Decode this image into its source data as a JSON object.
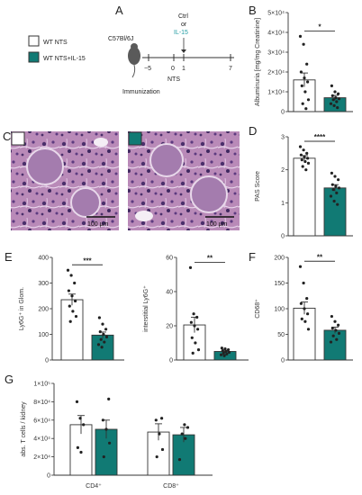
{
  "colors": {
    "teal": "#117a74",
    "white_bar": "#ffffff",
    "axis": "#333333",
    "dot": "#222222",
    "il15_text": "#1c9aa0"
  },
  "panels": {
    "A": "A",
    "B": "B",
    "C": "C",
    "D": "D",
    "E": "E",
    "F": "F",
    "G": "G"
  },
  "legend": {
    "entries": [
      "WT NTS",
      "WT NTS+IL-15"
    ]
  },
  "schema": {
    "mouse_strain": "C57Bl/6J",
    "ctrl": "Ctrl",
    "or": "or",
    "il15": "IL-15",
    "timeline_ticks": [
      "−5",
      "0",
      "1",
      "7"
    ],
    "nts": "NTS",
    "immunization": "Immunization"
  },
  "histology": {
    "scale_left": "100 µm",
    "scale_right": "100 µm"
  },
  "chart_data": [
    {
      "id": "B",
      "type": "bar",
      "ylabel": "Albuminuria [mg/mg Creatinine]",
      "ylim": [
        0,
        50000
      ],
      "yticks": [
        "0",
        "1×10⁴",
        "2×10⁴",
        "3×10⁴",
        "4×10⁴",
        "5×10⁴"
      ],
      "significance": "*",
      "series": [
        {
          "name": "WT NTS",
          "mean": 16000,
          "sem": 3500,
          "points": [
            38000,
            34000,
            24000,
            20000,
            17000,
            15000,
            13000,
            10000,
            6000,
            4000,
            1500
          ]
        },
        {
          "name": "WT NTS+IL-15",
          "mean": 7000,
          "sem": 1200,
          "points": [
            13000,
            10000,
            9000,
            8000,
            7000,
            6500,
            6000,
            5000,
            4000,
            3000,
            2000
          ]
        }
      ]
    },
    {
      "id": "D",
      "type": "bar",
      "ylabel": "PAS Score",
      "ylim": [
        0,
        3
      ],
      "yticks": [
        "0",
        "1",
        "2",
        "3"
      ],
      "significance": "****",
      "series": [
        {
          "name": "WT NTS",
          "mean": 2.35,
          "sem": 0.08,
          "points": [
            2.7,
            2.6,
            2.5,
            2.45,
            2.4,
            2.35,
            2.3,
            2.25,
            2.2,
            2.1,
            2.0
          ]
        },
        {
          "name": "WT NTS+IL-15",
          "mean": 1.45,
          "sem": 0.1,
          "points": [
            1.9,
            1.8,
            1.7,
            1.55,
            1.5,
            1.45,
            1.4,
            1.3,
            1.2,
            1.05,
            0.95
          ]
        }
      ]
    },
    {
      "id": "E1",
      "type": "bar",
      "ylabel": "Ly6G⁺ in Glom.",
      "ylim": [
        0,
        400
      ],
      "yticks": [
        "0",
        "100",
        "200",
        "300",
        "400"
      ],
      "significance": "***",
      "series": [
        {
          "name": "WT NTS",
          "mean": 235,
          "sem": 22,
          "points": [
            350,
            330,
            300,
            270,
            250,
            230,
            210,
            190,
            170,
            150
          ]
        },
        {
          "name": "WT NTS+IL-15",
          "mean": 97,
          "sem": 12,
          "points": [
            165,
            140,
            120,
            110,
            100,
            90,
            80,
            70,
            60,
            50
          ]
        }
      ]
    },
    {
      "id": "E2",
      "type": "bar",
      "ylabel": "interstitial Ly6G⁺",
      "ylim": [
        0,
        60
      ],
      "yticks": [
        "0",
        "20",
        "40",
        "60"
      ],
      "significance": "**",
      "series": [
        {
          "name": "WT NTS",
          "mean": 20.5,
          "sem": 4.5,
          "points": [
            54,
            27,
            25,
            22,
            20,
            18,
            13,
            10,
            6,
            4
          ]
        },
        {
          "name": "WT NTS+IL-15",
          "mean": 5,
          "sem": 0.7,
          "points": [
            7,
            6.5,
            6,
            5.5,
            5,
            4.5,
            4,
            3.5,
            3,
            2.5
          ]
        }
      ]
    },
    {
      "id": "F",
      "type": "bar",
      "ylabel": "CD68⁺",
      "ylim": [
        0,
        200
      ],
      "yticks": [
        "0",
        "50",
        "100",
        "150",
        "200"
      ],
      "significance": "**",
      "series": [
        {
          "name": "WT NTS",
          "mean": 101,
          "sem": 12,
          "points": [
            182,
            150,
            120,
            110,
            100,
            90,
            80,
            75,
            60
          ]
        },
        {
          "name": "WT NTS+IL-15",
          "mean": 58,
          "sem": 6,
          "points": [
            85,
            75,
            68,
            62,
            58,
            52,
            47,
            40,
            35
          ]
        }
      ]
    },
    {
      "id": "G",
      "type": "bar",
      "ylabel": "abs. T cells / kidney",
      "ylim": [
        0,
        100000
      ],
      "yticks": [
        "0",
        "2×10⁴",
        "4×10⁴",
        "6×10⁴",
        "8×10⁴",
        "1×10⁵"
      ],
      "categories": [
        "CD4⁺",
        "CD8⁺"
      ],
      "series": [
        {
          "name": "WT NTS",
          "means": [
            55000,
            47000
          ],
          "sems": [
            10000,
            9000
          ],
          "points": [
            [
              80000,
              62000,
              55000,
              30000,
              25000
            ],
            [
              62000,
              60000,
              45000,
              28000,
              20000
            ]
          ]
        },
        {
          "name": "WT NTS+IL-15",
          "means": [
            50000,
            44000
          ],
          "sems": [
            10000,
            8000
          ],
          "points": [
            [
              83000,
              60000,
              50000,
              35000,
              20000
            ],
            [
              55000,
              52000,
              45000,
              40000,
              17000
            ]
          ]
        }
      ]
    }
  ]
}
